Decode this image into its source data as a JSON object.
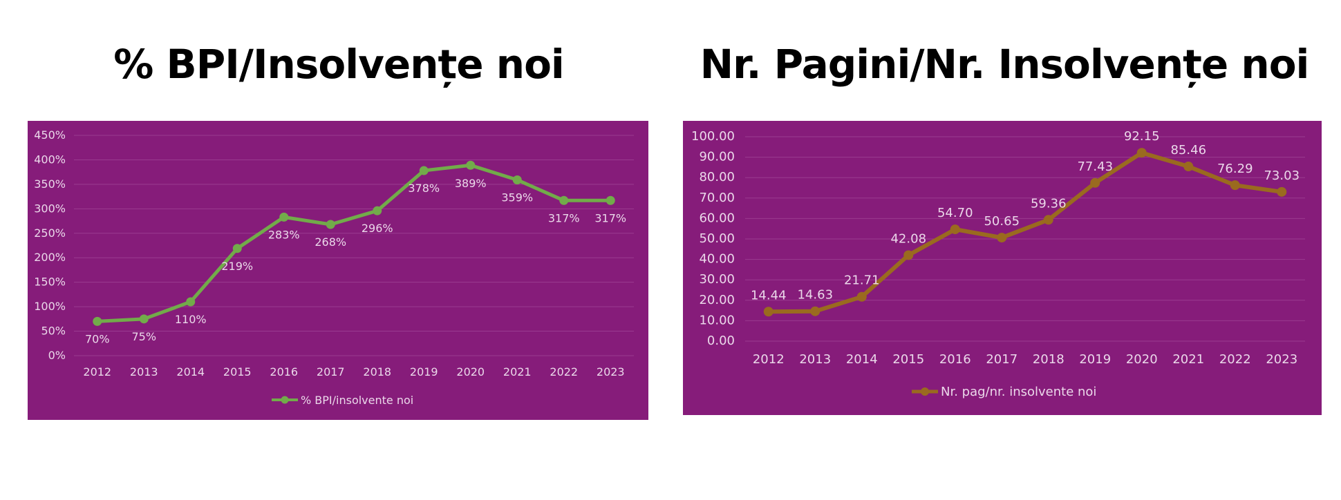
{
  "headings": {
    "left": "% BPI/Insolvențe noi",
    "right": "Nr. Pagini/Nr. Insolvențe noi"
  },
  "chart_data": [
    {
      "type": "line",
      "title": "",
      "xlabel": "",
      "ylabel": "",
      "categories": [
        "2012",
        "2013",
        "2014",
        "2015",
        "2016",
        "2017",
        "2018",
        "2019",
        "2020",
        "2021",
        "2022",
        "2023"
      ],
      "series": [
        {
          "name": "% BPI/insolvente noi",
          "values": [
            70,
            75,
            110,
            219,
            283,
            268,
            296,
            378,
            389,
            359,
            317,
            317
          ],
          "labels": [
            "70%",
            "75%",
            "110%",
            "219%",
            "283%",
            "268%",
            "296%",
            "378%",
            "389%",
            "359%",
            "317%",
            "317%"
          ]
        }
      ],
      "ylim": [
        0,
        450
      ],
      "ytick_labels": [
        "0%",
        "50%",
        "100%",
        "150%",
        "200%",
        "250%",
        "300%",
        "350%",
        "400%",
        "450%"
      ],
      "grid": true,
      "legend": "bottom",
      "background_color": "#861C7A",
      "line_color": "#72AB4A",
      "text_color": "#EBD8EA",
      "gridline_color": "#9A3B90"
    },
    {
      "type": "line",
      "title": "",
      "xlabel": "",
      "ylabel": "",
      "categories": [
        "2012",
        "2013",
        "2014",
        "2015",
        "2016",
        "2017",
        "2018",
        "2019",
        "2020",
        "2021",
        "2022",
        "2023"
      ],
      "series": [
        {
          "name": "Nr. pag/nr. insolvente noi",
          "values": [
            14.44,
            14.63,
            21.71,
            42.08,
            54.7,
            50.65,
            59.36,
            77.43,
            92.15,
            85.46,
            76.29,
            73.03
          ],
          "labels": [
            "14.44",
            "14.63",
            "21.71",
            "42.08",
            "54.70",
            "50.65",
            "59.36",
            "77.43",
            "92.15",
            "85.46",
            "76.29",
            "73.03"
          ]
        }
      ],
      "ylim": [
        0,
        100
      ],
      "ytick_labels": [
        "0.00",
        "10.00",
        "20.00",
        "30.00",
        "40.00",
        "50.00",
        "60.00",
        "70.00",
        "80.00",
        "90.00",
        "100.00"
      ],
      "grid": true,
      "legend": "bottom",
      "background_color": "#861C7A",
      "line_color": "#9A6A1F",
      "text_color": "#EBD8EA",
      "gridline_color": "#9A3B90"
    }
  ]
}
